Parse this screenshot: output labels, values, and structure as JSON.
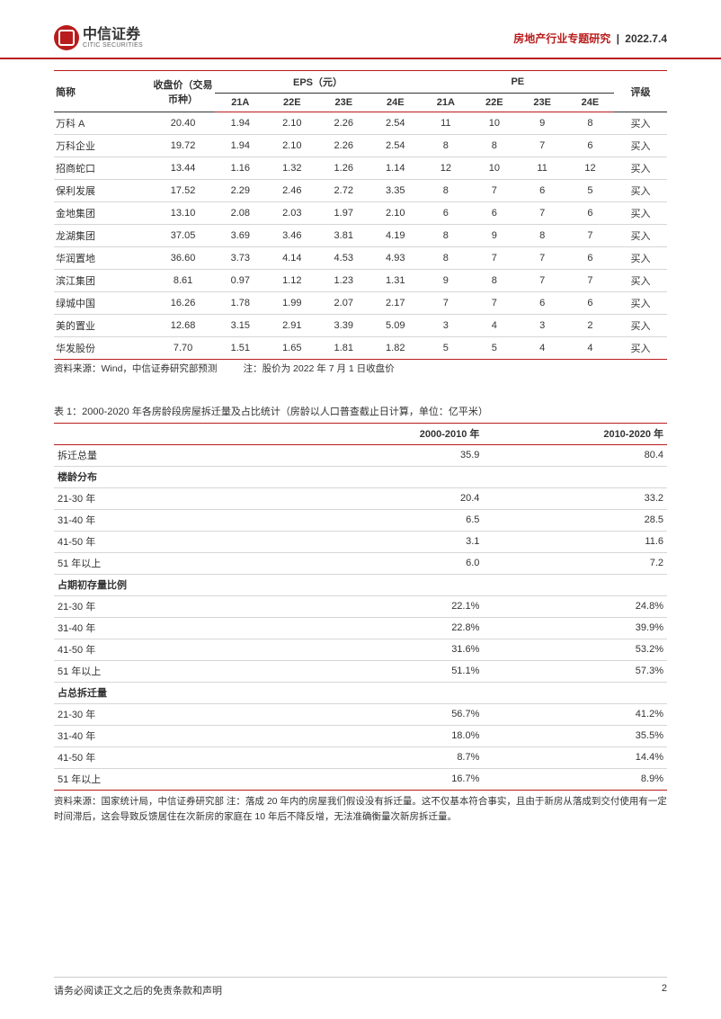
{
  "header": {
    "logo_cn": "中信证券",
    "logo_en": "CITIC SECURITIES",
    "category": "房地产行业专题研究",
    "date": "2022.7.4"
  },
  "table1": {
    "head": {
      "name": "简称",
      "price": "收盘价（交易币种）",
      "eps_group": "EPS（元）",
      "pe_group": "PE",
      "rating": "评级",
      "y21a": "21A",
      "y22e": "22E",
      "y23e": "23E",
      "y24e": "24E"
    },
    "rows": [
      {
        "name": "万科 A",
        "price": "20.40",
        "eps": [
          "1.94",
          "2.10",
          "2.26",
          "2.54"
        ],
        "pe": [
          "11",
          "10",
          "9",
          "8"
        ],
        "rating": "买入"
      },
      {
        "name": "万科企业",
        "price": "19.72",
        "eps": [
          "1.94",
          "2.10",
          "2.26",
          "2.54"
        ],
        "pe": [
          "8",
          "8",
          "7",
          "6"
        ],
        "rating": "买入"
      },
      {
        "name": "招商蛇口",
        "price": "13.44",
        "eps": [
          "1.16",
          "1.32",
          "1.26",
          "1.14"
        ],
        "pe": [
          "12",
          "10",
          "11",
          "12"
        ],
        "rating": "买入"
      },
      {
        "name": "保利发展",
        "price": "17.52",
        "eps": [
          "2.29",
          "2.46",
          "2.72",
          "3.35"
        ],
        "pe": [
          "8",
          "7",
          "6",
          "5"
        ],
        "rating": "买入"
      },
      {
        "name": "金地集团",
        "price": "13.10",
        "eps": [
          "2.08",
          "2.03",
          "1.97",
          "2.10"
        ],
        "pe": [
          "6",
          "6",
          "7",
          "6"
        ],
        "rating": "买入"
      },
      {
        "name": "龙湖集团",
        "price": "37.05",
        "eps": [
          "3.69",
          "3.46",
          "3.81",
          "4.19"
        ],
        "pe": [
          "8",
          "9",
          "8",
          "7"
        ],
        "rating": "买入"
      },
      {
        "name": "华润置地",
        "price": "36.60",
        "eps": [
          "3.73",
          "4.14",
          "4.53",
          "4.93"
        ],
        "pe": [
          "8",
          "7",
          "7",
          "6"
        ],
        "rating": "买入"
      },
      {
        "name": "滨江集团",
        "price": "8.61",
        "eps": [
          "0.97",
          "1.12",
          "1.23",
          "1.31"
        ],
        "pe": [
          "9",
          "8",
          "7",
          "7"
        ],
        "rating": "买入"
      },
      {
        "name": "绿城中国",
        "price": "16.26",
        "eps": [
          "1.78",
          "1.99",
          "2.07",
          "2.17"
        ],
        "pe": [
          "7",
          "7",
          "6",
          "6"
        ],
        "rating": "买入"
      },
      {
        "name": "美的置业",
        "price": "12.68",
        "eps": [
          "3.15",
          "2.91",
          "3.39",
          "5.09"
        ],
        "pe": [
          "3",
          "4",
          "3",
          "2"
        ],
        "rating": "买入"
      },
      {
        "name": "华发股份",
        "price": "7.70",
        "eps": [
          "1.51",
          "1.65",
          "1.81",
          "1.82"
        ],
        "pe": [
          "5",
          "5",
          "4",
          "4"
        ],
        "rating": "买入"
      }
    ],
    "source": "资料来源：Wind，中信证券研究部预测",
    "note": "注：股价为 2022 年 7 月 1 日收盘价"
  },
  "table2": {
    "title": "表 1：2000-2020 年各房龄段房屋拆迁量及占比统计（房龄以人口普查截止日计算，单位：亿平米）",
    "head": {
      "blank": "",
      "c1": "2000-2010 年",
      "c2": "2010-2020 年"
    },
    "rows": [
      {
        "type": "row",
        "label": "拆迁总量",
        "v1": "35.9",
        "v2": "80.4"
      },
      {
        "type": "section",
        "label": "楼龄分布"
      },
      {
        "type": "row",
        "label": "21-30 年",
        "v1": "20.4",
        "v2": "33.2"
      },
      {
        "type": "row",
        "label": "31-40 年",
        "v1": "6.5",
        "v2": "28.5"
      },
      {
        "type": "row",
        "label": "41-50 年",
        "v1": "3.1",
        "v2": "11.6"
      },
      {
        "type": "row",
        "label": "51 年以上",
        "v1": "6.0",
        "v2": "7.2"
      },
      {
        "type": "section",
        "label": "占期初存量比例"
      },
      {
        "type": "row",
        "label": "21-30 年",
        "v1": "22.1%",
        "v2": "24.8%"
      },
      {
        "type": "row",
        "label": "31-40 年",
        "v1": "22.8%",
        "v2": "39.9%"
      },
      {
        "type": "row",
        "label": "41-50 年",
        "v1": "31.6%",
        "v2": "53.2%"
      },
      {
        "type": "row",
        "label": "51 年以上",
        "v1": "51.1%",
        "v2": "57.3%"
      },
      {
        "type": "section",
        "label": "占总拆迁量"
      },
      {
        "type": "row",
        "label": "21-30 年",
        "v1": "56.7%",
        "v2": "41.2%"
      },
      {
        "type": "row",
        "label": "31-40 年",
        "v1": "18.0%",
        "v2": "35.5%"
      },
      {
        "type": "row",
        "label": "41-50 年",
        "v1": "8.7%",
        "v2": "14.4%"
      },
      {
        "type": "row",
        "label": "51 年以上",
        "v1": "16.7%",
        "v2": "8.9%"
      }
    ],
    "note": "资料来源：国家统计局，中信证券研究部 注：落成 20 年内的房屋我们假设没有拆迁量。这不仅基本符合事实，且由于新房从落成到交付使用有一定时间滞后，这会导致反馈居住在次新房的家庭在 10 年后不降反增，无法准确衡量次新房拆迁量。"
  },
  "footer": {
    "disclaimer": "请务必阅读正文之后的免责条款和声明",
    "page": "2"
  },
  "colors": {
    "brand_red": "#b91c1c",
    "border_gray": "#d6d6d6",
    "text": "#333333",
    "bg": "#ffffff"
  }
}
